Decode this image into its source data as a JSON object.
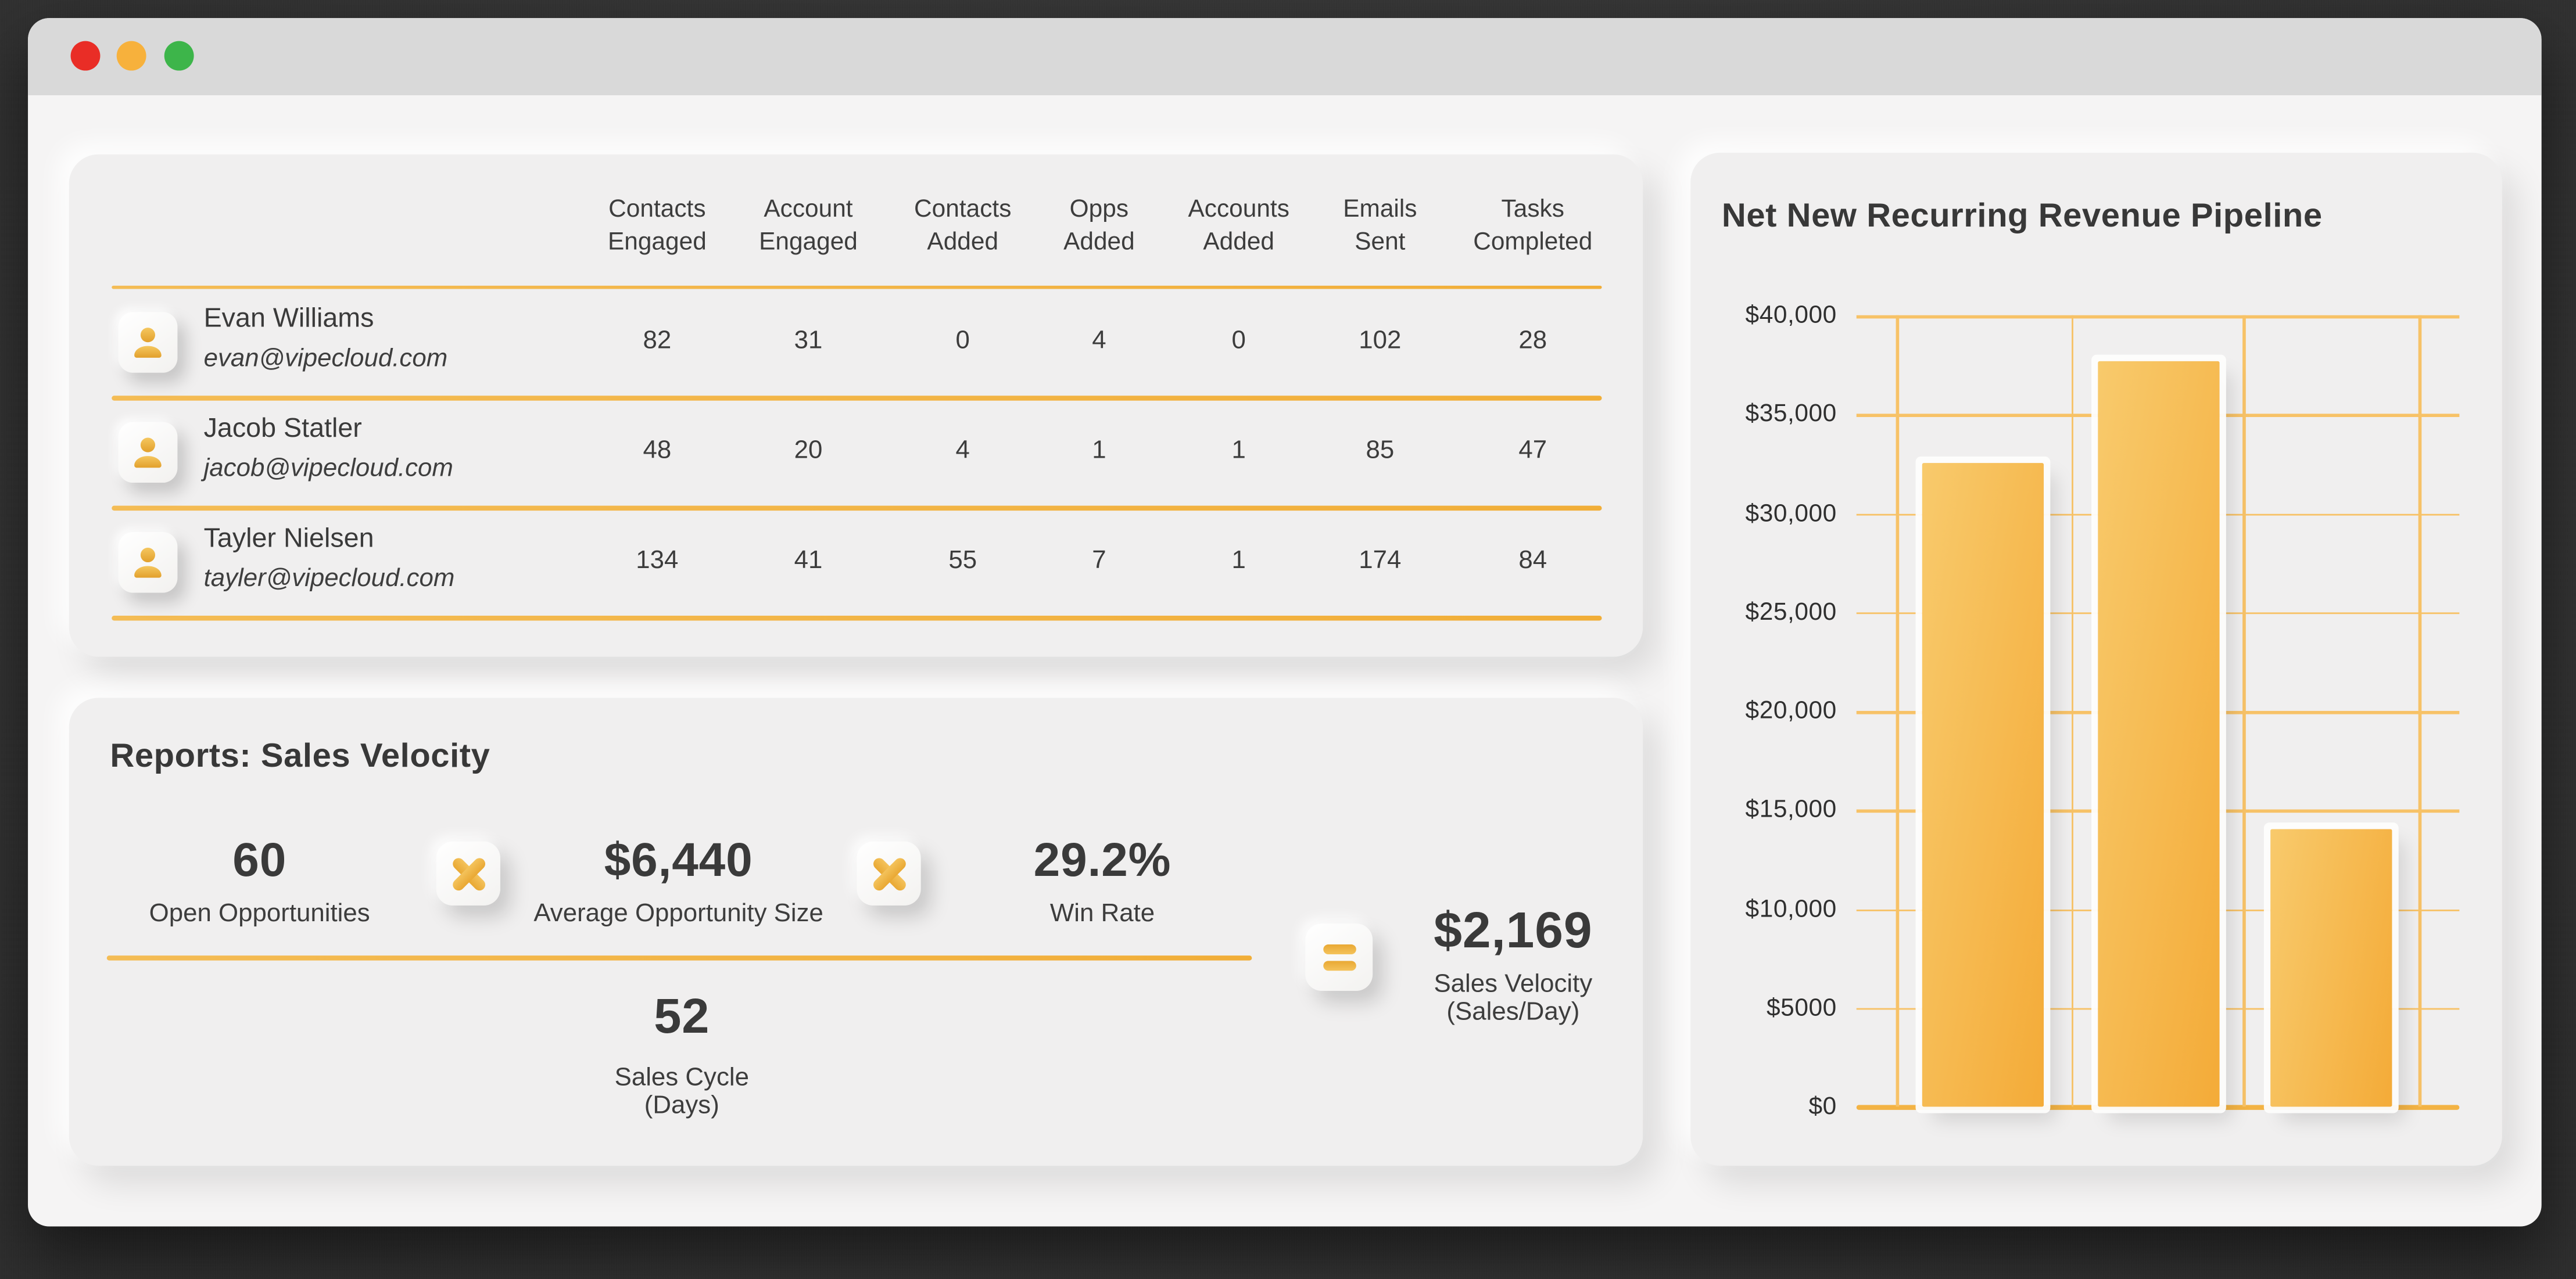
{
  "titlebar": {
    "buttons": [
      {
        "name": "close",
        "color": "#e92d26"
      },
      {
        "name": "minimize",
        "color": "#f7b13c"
      },
      {
        "name": "zoom",
        "color": "#3db54a"
      }
    ]
  },
  "team_table": {
    "columns": [
      {
        "line1": "Contacts",
        "line2": "Engaged"
      },
      {
        "line1": "Account",
        "line2": "Engaged"
      },
      {
        "line1": "Contacts",
        "line2": "Added"
      },
      {
        "line1": "Opps",
        "line2": "Added"
      },
      {
        "line1": "Accounts",
        "line2": "Added"
      },
      {
        "line1": "Emails",
        "line2": "Sent"
      },
      {
        "line1": "Tasks",
        "line2": "Completed"
      }
    ],
    "rows": [
      {
        "name": "Evan Williams",
        "email": "evan@vipecloud.com",
        "values": [
          "82",
          "31",
          "0",
          "4",
          "0",
          "102",
          "28"
        ]
      },
      {
        "name": "Jacob Statler",
        "email": "jacob@vipecloud.com",
        "values": [
          "48",
          "20",
          "4",
          "1",
          "1",
          "85",
          "47"
        ]
      },
      {
        "name": "Tayler Nielsen",
        "email": "tayler@vipecloud.com",
        "values": [
          "134",
          "41",
          "55",
          "7",
          "1",
          "174",
          "84"
        ]
      }
    ]
  },
  "sales_velocity": {
    "title": "Reports: Sales Velocity",
    "numerator_metrics": [
      {
        "value": "60",
        "label": "Open Opportunities"
      },
      {
        "value": "$6,440",
        "label": "Average Opportunity Size"
      },
      {
        "value": "29.2%",
        "label": "Win Rate"
      }
    ],
    "operators": [
      "×",
      "×",
      "="
    ],
    "denominator": {
      "value": "52",
      "label": [
        "Sales Cycle",
        "(Days)"
      ]
    },
    "result": {
      "value": "$2,169",
      "label": [
        "Sales Velocity",
        "(Sales/Day)"
      ]
    }
  },
  "chart_data": {
    "type": "bar",
    "title": "Net New Recurring Revenue Pipeline",
    "categories": [
      "",
      "",
      ""
    ],
    "values": [
      32500,
      37700,
      14000
    ],
    "xlabel": "",
    "ylabel": "",
    "ylim": [
      0,
      40000
    ],
    "ytick_labels": [
      "$40,000",
      "$35,000",
      "$30,000",
      "$25,000",
      "$20,000",
      "$15,000",
      "$10,000",
      "$5000",
      "$0"
    ],
    "grid": "horizontal and vertical orange gridlines",
    "legend_position": "none",
    "bar_gradient": [
      "#f8ca6c",
      "#f4ab38"
    ]
  },
  "colors": {
    "accent_orange": "#f2b549",
    "grid_orange": "#f7c267",
    "card_background": "#f0efef",
    "window_background": "#f5f4f4",
    "titlebar_background": "#d9d9d9",
    "text_dark": "#3a3a3a",
    "desktop_background": "#3a3a3a"
  }
}
